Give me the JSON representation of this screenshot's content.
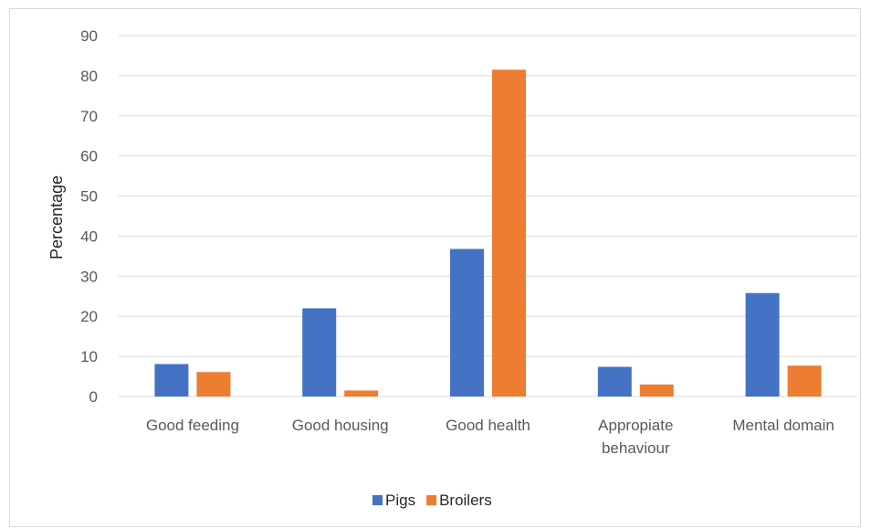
{
  "chart_data": {
    "type": "bar",
    "title": "",
    "xlabel": "",
    "ylabel": "Percentage",
    "ylim": [
      0,
      90
    ],
    "yticks": [
      0,
      10,
      20,
      30,
      40,
      50,
      60,
      70,
      80,
      90
    ],
    "grid": true,
    "legend_position": "bottom",
    "categories": [
      [
        "Good feeding"
      ],
      [
        "Good housing"
      ],
      [
        "Good health"
      ],
      [
        "Appropiate",
        "behaviour"
      ],
      [
        "Mental domain"
      ]
    ],
    "series": [
      {
        "name": "Pigs",
        "color": "#4472c4",
        "values": [
          8.1,
          22.0,
          36.8,
          7.4,
          25.8
        ]
      },
      {
        "name": "Broilers",
        "color": "#ed7d31",
        "values": [
          6.1,
          1.5,
          81.5,
          3.0,
          7.7
        ]
      }
    ]
  }
}
